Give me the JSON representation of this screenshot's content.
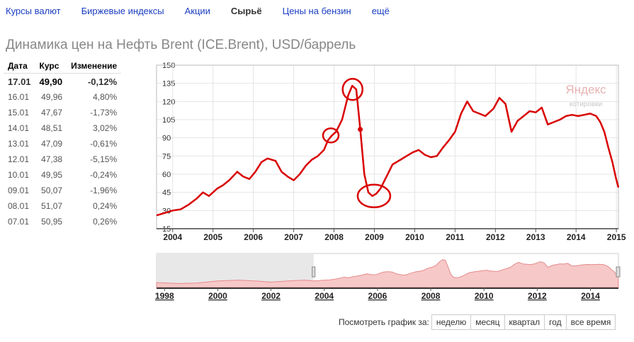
{
  "nav": [
    {
      "label": "Курсы валют",
      "active": false
    },
    {
      "label": "Биржевые индексы",
      "active": false
    },
    {
      "label": "Акции",
      "active": false
    },
    {
      "label": "Сырьё",
      "active": true
    },
    {
      "label": "Цены на бензин",
      "active": false
    },
    {
      "label": "ещё",
      "active": false
    }
  ],
  "title": "Динамика цен на Нефть Brent (ICE.Brent), USD/баррель",
  "table": {
    "headers": [
      "Дата",
      "Курс",
      "Изменение"
    ],
    "rows": [
      {
        "date": "17.01",
        "value": "49,90",
        "change": "-0,12%"
      },
      {
        "date": "16.01",
        "value": "49,96",
        "change": "4,80%"
      },
      {
        "date": "15.01",
        "value": "47,67",
        "change": "-1,73%"
      },
      {
        "date": "14.01",
        "value": "48,51",
        "change": "3,02%"
      },
      {
        "date": "13.01",
        "value": "47,09",
        "change": "-0,61%"
      },
      {
        "date": "12.01",
        "value": "47,38",
        "change": "-5,15%"
      },
      {
        "date": "10.01",
        "value": "49,95",
        "change": "-0,24%"
      },
      {
        "date": "09.01",
        "value": "50,07",
        "change": "-1,96%"
      },
      {
        "date": "08.01",
        "value": "51,07",
        "change": "0,24%"
      },
      {
        "date": "07.01",
        "value": "50,95",
        "change": "0,26%"
      }
    ]
  },
  "watermark": {
    "brand": "Яндекс",
    "sub": "котировки"
  },
  "colors": {
    "line": "#d90000",
    "fill": "#f7c8c8",
    "nav_link": "#1a3dc1"
  },
  "chart_data": [
    {
      "type": "line",
      "title": "",
      "ylim": [
        15,
        150
      ],
      "yticks": [
        15,
        30,
        45,
        60,
        75,
        90,
        105,
        120,
        135,
        150
      ],
      "xlim": [
        2003.6,
        2015.05
      ],
      "xticks": [
        2004,
        2005,
        2006,
        2007,
        2008,
        2009,
        2010,
        2011,
        2012,
        2013,
        2014,
        2015
      ],
      "grid": true,
      "series": [
        {
          "x": [
            2003.6,
            2003.8,
            2004.0,
            2004.2,
            2004.4,
            2004.6,
            2004.75,
            2004.9,
            2005.1,
            2005.25,
            2005.4,
            2005.6,
            2005.75,
            2005.9,
            2006.05,
            2006.2,
            2006.35,
            2006.55,
            2006.7,
            2006.85,
            2007.0,
            2007.15,
            2007.3,
            2007.45,
            2007.6,
            2007.75,
            2007.85,
            2007.95,
            2008.05,
            2008.2,
            2008.35,
            2008.45,
            2008.55,
            2008.65,
            2008.75,
            2008.85,
            2008.95,
            2009.05,
            2009.15,
            2009.3,
            2009.45,
            2009.55,
            2009.65,
            2009.8,
            2009.95,
            2010.1,
            2010.25,
            2010.4,
            2010.55,
            2010.7,
            2010.85,
            2011.0,
            2011.15,
            2011.3,
            2011.45,
            2011.6,
            2011.75,
            2011.95,
            2012.1,
            2012.25,
            2012.4,
            2012.55,
            2012.7,
            2012.85,
            2013.0,
            2013.15,
            2013.3,
            2013.45,
            2013.6,
            2013.75,
            2013.9,
            2014.05,
            2014.2,
            2014.35,
            2014.5,
            2014.6,
            2014.7,
            2014.8,
            2014.9,
            2014.98,
            2015.05
          ],
          "values": [
            26,
            28,
            30,
            31,
            35,
            40,
            45,
            42,
            48,
            51,
            55,
            62,
            58,
            56,
            62,
            70,
            73,
            71,
            62,
            58,
            55,
            60,
            67,
            72,
            75,
            80,
            88,
            92,
            95,
            105,
            125,
            133,
            130,
            97,
            60,
            45,
            42,
            44,
            48,
            58,
            68,
            70,
            72,
            75,
            78,
            80,
            76,
            74,
            75,
            82,
            88,
            95,
            110,
            120,
            112,
            110,
            108,
            114,
            123,
            118,
            95,
            104,
            108,
            112,
            111,
            115,
            101,
            103,
            105,
            108,
            109,
            108,
            109,
            110,
            108,
            103,
            95,
            82,
            70,
            58,
            49
          ]
        }
      ],
      "annotations": [
        "circle 2007.9 ~92",
        "circle 2008.45 ~133",
        "circle 2008.99 ~41"
      ]
    },
    {
      "type": "area",
      "xlim": [
        1997.7,
        2015.05
      ],
      "xticks": [
        1998,
        2000,
        2002,
        2004,
        2006,
        2008,
        2010,
        2012,
        2014
      ],
      "selection": [
        2003.6,
        2015.05
      ]
    }
  ],
  "period_buttons": {
    "label": "Посмотреть график за:",
    "items": [
      "неделю",
      "месяц",
      "квартал",
      "год",
      "все время"
    ]
  }
}
